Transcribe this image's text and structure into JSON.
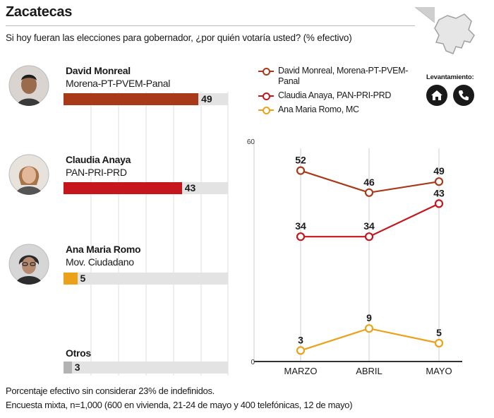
{
  "title": "Zacatecas",
  "question": "Si hoy fueran las elecciones para gobernador, ¿por quién votaría usted? (% efectivo)",
  "levantamiento_label": "Levantamiento:",
  "levantamiento_icons": [
    "house-icon",
    "phone-icon"
  ],
  "footnotes": [
    "Porcentaje efectivo sin considerar 23% de indefinidos.",
    "Encuesta mixta, n=1,000 (600 en vivienda, 21-24 de mayo y 400 telefónicas, 12 de mayo)"
  ],
  "colors": {
    "monreal": "#a83a1a",
    "anaya": "#c4161c",
    "romo": "#e9a21a",
    "otros": "#b3b3b3",
    "track": "#e3e3e3"
  },
  "chart_data": [
    {
      "type": "bar",
      "orientation": "horizontal",
      "categories": [
        "David Monreal",
        "Claudia Anaya",
        "Ana Maria Romo",
        "Otros"
      ],
      "parties": [
        "Morena-PT-PVEM-Panal",
        "PAN-PRI-PRD",
        "Mov. Ciudadano",
        ""
      ],
      "values": [
        49,
        43,
        5,
        3
      ],
      "xlim": [
        0,
        60
      ]
    },
    {
      "type": "line",
      "categories": [
        "MARZO",
        "ABRIL",
        "MAYO"
      ],
      "ylim": [
        0,
        60
      ],
      "ytick_labels": [
        "0",
        "60"
      ],
      "grid": "vertical",
      "legend_position": "top",
      "series": [
        {
          "name": "David Monreal, Morena-PT-PVEM-Panal",
          "values": [
            52,
            46,
            49
          ]
        },
        {
          "name": "Claudia Anaya, PAN-PRI-PRD",
          "values": [
            34,
            34,
            43
          ]
        },
        {
          "name": "Ana Maria Romo, MC",
          "values": [
            3,
            9,
            5
          ]
        }
      ]
    }
  ]
}
